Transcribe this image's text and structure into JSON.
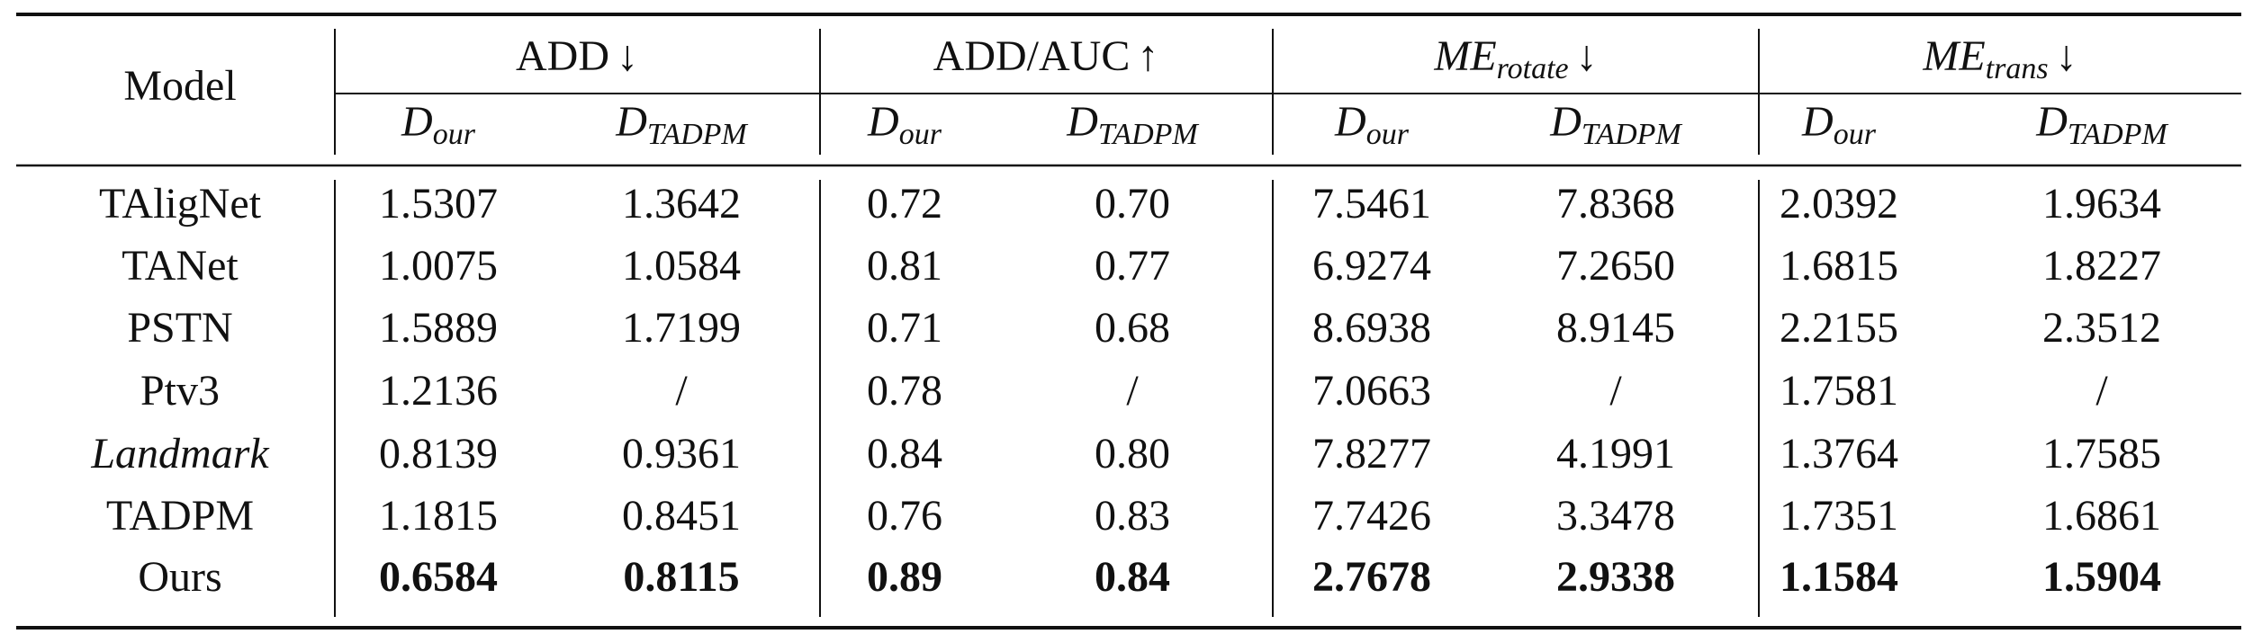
{
  "table": {
    "header": {
      "model": "Model",
      "groups": [
        {
          "main": "ADD",
          "arrow": "↓"
        },
        {
          "main": "ADD/AUC",
          "arrow": "↑"
        },
        {
          "main": "ME",
          "sub": "rotate",
          "arrow": "↓",
          "math": true
        },
        {
          "main": "ME",
          "sub": "trans",
          "arrow": "↓",
          "math": true
        }
      ],
      "columns": [
        {
          "main": "D",
          "sub": "our"
        },
        {
          "main": "D",
          "sub": "TADPM"
        },
        {
          "main": "D",
          "sub": "our"
        },
        {
          "main": "D",
          "sub": "TADPM"
        },
        {
          "main": "D",
          "sub": "our"
        },
        {
          "main": "D",
          "sub": "TADPM"
        },
        {
          "main": "D",
          "sub": "our"
        },
        {
          "main": "D",
          "sub": "TADPM"
        }
      ]
    },
    "rows": [
      {
        "model": "TAligNet",
        "cells": [
          "1.5307",
          "1.3642",
          "0.72",
          "0.70",
          "7.5461",
          "7.8368",
          "2.0392",
          "1.9634"
        ]
      },
      {
        "model": "TANet",
        "cells": [
          "1.0075",
          "1.0584",
          "0.81",
          "0.77",
          "6.9274",
          "7.2650",
          "1.6815",
          "1.8227"
        ]
      },
      {
        "model": "PSTN",
        "cells": [
          "1.5889",
          "1.7199",
          "0.71",
          "0.68",
          "8.6938",
          "8.9145",
          "2.2155",
          "2.3512"
        ]
      },
      {
        "model": "Ptv3",
        "cells": [
          "1.2136",
          "/",
          "0.78",
          "/",
          "7.0663",
          "/",
          "1.7581",
          "/"
        ]
      },
      {
        "model": "Landmark",
        "italic": true,
        "cells": [
          "0.8139",
          "0.9361",
          "0.84",
          "0.80",
          "7.8277",
          "4.1991",
          "1.3764",
          "1.7585"
        ]
      },
      {
        "model": "TADPM",
        "cells": [
          "1.1815",
          "0.8451",
          "0.76",
          "0.83",
          "7.7426",
          "3.3478",
          "1.7351",
          "1.6861"
        ]
      },
      {
        "model": "Ours",
        "bold": true,
        "cells": [
          "0.6584",
          "0.8115",
          "0.89",
          "0.84",
          "2.7678",
          "2.9338",
          "1.1584",
          "1.5904"
        ]
      }
    ]
  }
}
